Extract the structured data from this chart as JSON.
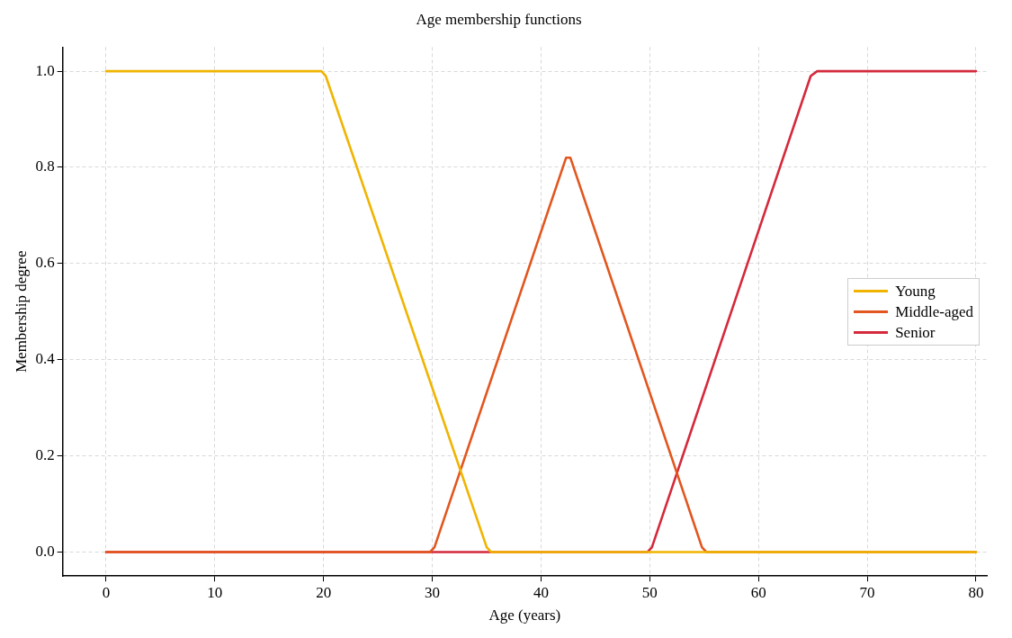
{
  "chart_data": {
    "type": "line",
    "title": "Age membership functions",
    "xlabel": "Age (years)",
    "ylabel": "Membership degree",
    "xlim": [
      -4,
      81
    ],
    "ylim": [
      -0.05,
      1.05
    ],
    "xticks": [
      0,
      10,
      20,
      30,
      40,
      50,
      60,
      70,
      80
    ],
    "yticks": [
      {
        "value": 0,
        "label": "0.0"
      },
      {
        "value": 0.2,
        "label": "0.2"
      },
      {
        "value": 0.4,
        "label": "0.4"
      },
      {
        "value": 0.6,
        "label": "0.6"
      },
      {
        "value": 0.8,
        "label": "0.8"
      },
      {
        "value": 1,
        "label": "1.0"
      }
    ],
    "grid": true,
    "legend": "right",
    "line_style": "solid",
    "marker": "none",
    "series": [
      {
        "name": "Young",
        "color": "#f0b400",
        "x": [
          0,
          19.8,
          20.2,
          35,
          35.4,
          80
        ],
        "values": [
          1,
          1,
          0.99,
          0.01,
          0,
          0
        ]
      },
      {
        "name": "Middle-aged",
        "color": "#e2561f",
        "x": [
          0,
          29.8,
          30.2,
          42.3,
          42.7,
          54.8,
          55.2,
          80
        ],
        "values": [
          0,
          0,
          0.01,
          0.82,
          0.82,
          0.01,
          0,
          0
        ]
      },
      {
        "name": "Senior",
        "color": "#d42a3c",
        "x": [
          0,
          49.8,
          50.2,
          64.8,
          65.4,
          80
        ],
        "values": [
          0,
          0,
          0.01,
          0.99,
          1,
          1
        ]
      }
    ]
  }
}
